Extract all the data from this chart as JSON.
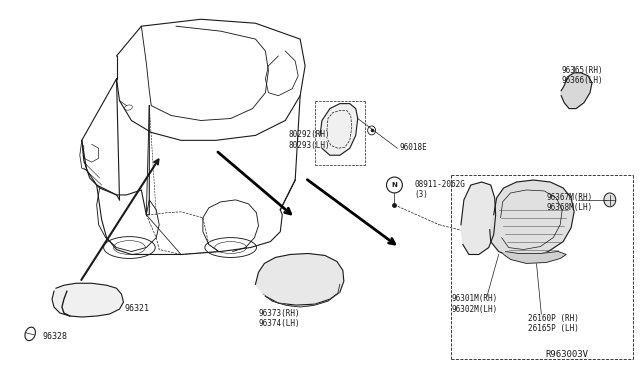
{
  "bg_color": "#ffffff",
  "line_color": "#1a1a1a",
  "text_color": "#1a1a1a",
  "ref_code": "R963003V",
  "label_96321": "96321",
  "label_96328": "96328",
  "label_80292": "80292(RH)\n80293(LH)",
  "label_96018E": "96018E",
  "label_08911": "08911-2062G\n(3)",
  "label_96367M": "96367M(RH)\n96368M(LH)",
  "label_96365": "96365(RH)\n96366(LH)",
  "label_96373": "96373(RH)\n96374(LH)",
  "label_96301M": "96301M(RH)\n96302M(LH)",
  "label_26160P": "26160P (RH)\n26165P (LH)"
}
